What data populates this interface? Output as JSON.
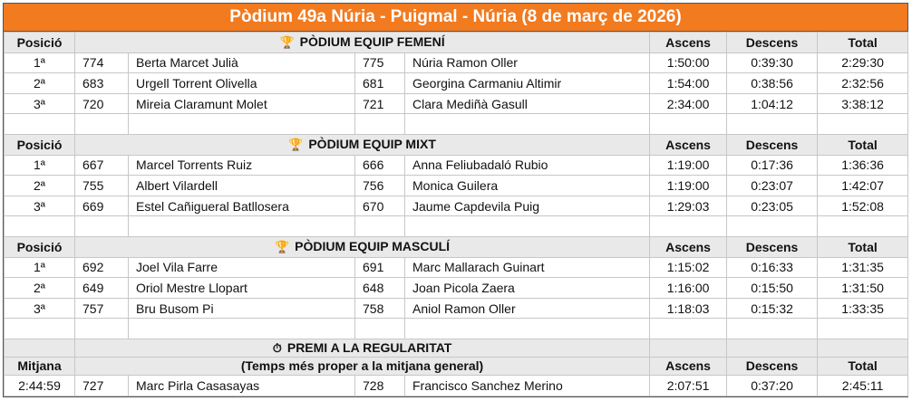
{
  "title": "Pòdium 49a Núria - Puigmal - Núria (8 de març de 2026)",
  "sections": [
    {
      "left_header": "Posició",
      "icon": "trophy-icon",
      "heading": "PÒDIUM EQUIP FEMENÍ",
      "col_ascens": "Ascens",
      "col_descens": "Descens",
      "col_total": "Total",
      "rows": [
        {
          "pos": "1ª",
          "n1": "774",
          "name1": "Berta Marcet Julià",
          "n2": "775",
          "name2": "Núria Ramon Oller",
          "ascens": "1:50:00",
          "descens": "0:39:30",
          "total": "2:29:30"
        },
        {
          "pos": "2ª",
          "n1": "683",
          "name1": "Urgell Torrent Olivella",
          "n2": "681",
          "name2": "Georgina Carmaniu Altimir",
          "ascens": "1:54:00",
          "descens": "0:38:56",
          "total": "2:32:56"
        },
        {
          "pos": "3ª",
          "n1": "720",
          "name1": "Mireia Claramunt Molet",
          "n2": "721",
          "name2": "Clara Mediñà Gasull",
          "ascens": "2:34:00",
          "descens": "1:04:12",
          "total": "3:38:12"
        }
      ]
    },
    {
      "left_header": "Posició",
      "icon": "trophy-icon",
      "heading": "PÒDIUM EQUIP MIXT",
      "col_ascens": "Ascens",
      "col_descens": "Descens",
      "col_total": "Total",
      "rows": [
        {
          "pos": "1ª",
          "n1": "667",
          "name1": "Marcel Torrents Ruiz",
          "n2": "666",
          "name2": "Anna Feliubadaló Rubio",
          "ascens": "1:19:00",
          "descens": "0:17:36",
          "total": "1:36:36"
        },
        {
          "pos": "2ª",
          "n1": "755",
          "name1": "Albert Vilardell",
          "n2": "756",
          "name2": "Monica Guilera",
          "ascens": "1:19:00",
          "descens": "0:23:07",
          "total": "1:42:07"
        },
        {
          "pos": "3ª",
          "n1": "669",
          "name1": "Estel Cañigueral Batllosera",
          "n2": "670",
          "name2": "Jaume Capdevila Puig",
          "ascens": "1:29:03",
          "descens": "0:23:05",
          "total": "1:52:08"
        }
      ]
    },
    {
      "left_header": "Posició",
      "icon": "trophy-icon",
      "heading": "PÒDIUM EQUIP MASCULÍ",
      "col_ascens": "Ascens",
      "col_descens": "Descens",
      "col_total": "Total",
      "rows": [
        {
          "pos": "1ª",
          "n1": "692",
          "name1": "Joel Vila Farre",
          "n2": "691",
          "name2": "Marc Mallarach Guinart",
          "ascens": "1:15:02",
          "descens": "0:16:33",
          "total": "1:31:35"
        },
        {
          "pos": "2ª",
          "n1": "649",
          "name1": "Oriol Mestre Llopart",
          "n2": "648",
          "name2": "Joan Picola Zaera",
          "ascens": "1:16:00",
          "descens": "0:15:50",
          "total": "1:31:50"
        },
        {
          "pos": "3ª",
          "n1": "757",
          "name1": "Bru Busom Pi",
          "n2": "758",
          "name2": "Aniol Ramon Oller",
          "ascens": "1:18:03",
          "descens": "0:15:32",
          "total": "1:33:35"
        }
      ]
    }
  ],
  "regularity": {
    "icon": "stopwatch-icon",
    "heading": "PREMI A LA REGULARITAT",
    "subheading": "(Temps més proper a la mitjana general)",
    "left_header": "Mitjana",
    "col_ascens": "Ascens",
    "col_descens": "Descens",
    "col_total": "Total",
    "row": {
      "mitjana": "2:44:59",
      "n1": "727",
      "name1": "Marc Pirla Casasayas",
      "n2": "728",
      "name2": "Francisco Sanchez Merino",
      "ascens": "2:07:51",
      "descens": "0:37:20",
      "total": "2:45:11"
    }
  }
}
